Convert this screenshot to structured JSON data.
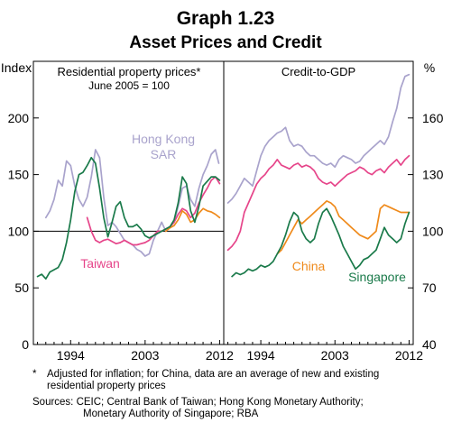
{
  "figure": {
    "title": "Graph 1.23",
    "subtitle": "Asset Prices and Credit"
  },
  "colors": {
    "hong_kong": "#a9a3cc",
    "taiwan": "#e6458a",
    "china": "#ef8a1b",
    "singapore": "#1a7a4a"
  },
  "footnotes": {
    "note_marker": "*",
    "note_line1": "Adjusted for inflation; for China, data are an average of new and existing",
    "note_line2": "residential property prices",
    "sources_line1": "Sources:  CEIC; Central Bank of Taiwan; Hong Kong Monetary Authority;",
    "sources_line2": "Monetary Authority of Singapore; RBA"
  },
  "chart_data": [
    {
      "type": "line",
      "title": "Residential property prices*",
      "subtitle": "June 2005 = 100",
      "ylabel": "Index",
      "xlim": [
        1989.5,
        2012.5
      ],
      "ylim": [
        0,
        250
      ],
      "yticks": [
        0,
        50,
        100,
        150,
        200
      ],
      "xticks": [
        1994,
        2003,
        2012
      ],
      "reference_line": 100,
      "series": [
        {
          "name": "Hong Kong SAR",
          "color_key": "hong_kong",
          "x": [
            1991.0,
            1991.5,
            1992.0,
            1992.5,
            1993.0,
            1993.5,
            1994.0,
            1994.5,
            1995.0,
            1995.5,
            1996.0,
            1996.5,
            1997.0,
            1997.5,
            1998.0,
            1998.5,
            1999.0,
            1999.5,
            2000.0,
            2000.5,
            2001.0,
            2001.5,
            2002.0,
            2002.5,
            2003.0,
            2003.5,
            2004.0,
            2004.5,
            2005.0,
            2005.5,
            2006.0,
            2006.5,
            2007.0,
            2007.5,
            2008.0,
            2008.5,
            2009.0,
            2009.5,
            2010.0,
            2010.5,
            2011.0,
            2011.5,
            2011.9
          ],
          "values": [
            112,
            118,
            128,
            145,
            140,
            162,
            158,
            140,
            128,
            122,
            130,
            148,
            172,
            165,
            130,
            105,
            108,
            104,
            98,
            92,
            90,
            88,
            84,
            82,
            78,
            80,
            92,
            100,
            108,
            100,
            104,
            108,
            122,
            138,
            140,
            128,
            122,
            138,
            150,
            158,
            168,
            172,
            160
          ]
        },
        {
          "name": "Taiwan",
          "color_key": "taiwan",
          "x": [
            1996.0,
            1996.5,
            1997.0,
            1997.5,
            1998.0,
            1998.5,
            1999.0,
            1999.5,
            2000.0,
            2000.5,
            2001.0,
            2001.5,
            2002.0,
            2002.5,
            2003.0,
            2003.5,
            2004.0,
            2004.5,
            2005.0,
            2005.5,
            2006.0,
            2006.5,
            2007.0,
            2007.5,
            2008.0,
            2008.5,
            2009.0,
            2009.5,
            2010.0,
            2010.5,
            2011.0,
            2011.5,
            2012.0
          ],
          "values": [
            112,
            100,
            92,
            90,
            92,
            93,
            91,
            89,
            90,
            92,
            90,
            88,
            88,
            89,
            90,
            92,
            96,
            100,
            100,
            102,
            104,
            108,
            115,
            120,
            118,
            112,
            116,
            125,
            132,
            138,
            145,
            148,
            142
          ]
        },
        {
          "name": "China",
          "color_key": "china",
          "x": [
            2005.5,
            2006.0,
            2006.5,
            2007.0,
            2007.5,
            2008.0,
            2008.5,
            2009.0,
            2009.5,
            2010.0,
            2010.5,
            2011.0,
            2011.5,
            2012.0
          ],
          "values": [
            100,
            103,
            105,
            110,
            118,
            115,
            108,
            110,
            116,
            120,
            118,
            117,
            115,
            112
          ]
        },
        {
          "name": "Singapore",
          "color_key": "singapore",
          "x": [
            1990.0,
            1990.5,
            1991.0,
            1991.5,
            1992.0,
            1992.5,
            1993.0,
            1993.5,
            1994.0,
            1994.5,
            1995.0,
            1995.5,
            1996.0,
            1996.5,
            1997.0,
            1997.5,
            1998.0,
            1998.5,
            1999.0,
            1999.5,
            2000.0,
            2000.5,
            2001.0,
            2001.5,
            2002.0,
            2002.5,
            2003.0,
            2003.5,
            2004.0,
            2004.5,
            2005.0,
            2005.5,
            2006.0,
            2006.5,
            2007.0,
            2007.5,
            2008.0,
            2008.5,
            2009.0,
            2009.5,
            2010.0,
            2010.5,
            2011.0,
            2011.5,
            2012.0
          ],
          "values": [
            60,
            62,
            58,
            64,
            66,
            68,
            75,
            90,
            110,
            135,
            150,
            152,
            158,
            165,
            160,
            138,
            112,
            95,
            108,
            122,
            126,
            112,
            104,
            104,
            106,
            102,
            96,
            94,
            96,
            98,
            100,
            102,
            104,
            110,
            125,
            148,
            142,
            118,
            108,
            122,
            140,
            144,
            148,
            148,
            145
          ]
        }
      ],
      "labels": [
        {
          "text_line1": "Hong Kong",
          "text_line2": "SAR",
          "series": "Hong Kong SAR"
        },
        {
          "text_line1": "Taiwan",
          "series": "Taiwan"
        }
      ]
    },
    {
      "type": "line",
      "title": "Credit-to-GDP",
      "ylabel": "%",
      "xlim": [
        1989.5,
        2012.5
      ],
      "ylim": [
        40,
        190
      ],
      "yticks": [
        40,
        70,
        100,
        130,
        160
      ],
      "xticks": [
        1994,
        2003,
        2012
      ],
      "series": [
        {
          "name": "Hong Kong SAR",
          "color_key": "hong_kong",
          "x": [
            1990.0,
            1990.5,
            1991.0,
            1991.5,
            1992.0,
            1992.5,
            1993.0,
            1993.5,
            1994.0,
            1994.5,
            1995.0,
            1995.5,
            1996.0,
            1996.5,
            1997.0,
            1997.5,
            1998.0,
            1998.5,
            1999.0,
            1999.5,
            2000.0,
            2000.5,
            2001.0,
            2001.5,
            2002.0,
            2002.5,
            2003.0,
            2003.5,
            2004.0,
            2004.5,
            2005.0,
            2005.5,
            2006.0,
            2006.5,
            2007.0,
            2007.5,
            2008.0,
            2008.5,
            2009.0,
            2009.5,
            2010.0,
            2010.5,
            2011.0,
            2011.5,
            2012.0
          ],
          "values": [
            115,
            117,
            120,
            124,
            128,
            126,
            124,
            132,
            140,
            145,
            148,
            150,
            152,
            153,
            155,
            148,
            145,
            146,
            145,
            142,
            140,
            140,
            138,
            136,
            135,
            136,
            134,
            138,
            140,
            139,
            138,
            136,
            137,
            140,
            142,
            144,
            146,
            148,
            146,
            150,
            158,
            165,
            176,
            182,
            183
          ]
        },
        {
          "name": "Taiwan",
          "color_key": "taiwan",
          "x": [
            1990.0,
            1990.5,
            1991.0,
            1991.5,
            1992.0,
            1992.5,
            1993.0,
            1993.5,
            1994.0,
            1994.5,
            1995.0,
            1995.5,
            1996.0,
            1996.5,
            1997.0,
            1997.5,
            1998.0,
            1998.5,
            1999.0,
            1999.5,
            2000.0,
            2000.5,
            2001.0,
            2001.5,
            2002.0,
            2002.5,
            2003.0,
            2003.5,
            2004.0,
            2004.5,
            2005.0,
            2005.5,
            2006.0,
            2006.5,
            2007.0,
            2007.5,
            2008.0,
            2008.5,
            2009.0,
            2009.5,
            2010.0,
            2010.5,
            2011.0,
            2011.5,
            2012.0
          ],
          "values": [
            90,
            92,
            95,
            100,
            110,
            115,
            120,
            125,
            128,
            130,
            133,
            135,
            138,
            135,
            134,
            133,
            135,
            136,
            134,
            135,
            134,
            132,
            128,
            126,
            125,
            126,
            124,
            126,
            128,
            130,
            131,
            132,
            134,
            133,
            131,
            130,
            132,
            133,
            131,
            134,
            136,
            138,
            135,
            138,
            140
          ]
        },
        {
          "name": "China",
          "color_key": "china",
          "x": [
            1996.0,
            1996.5,
            1997.0,
            1997.5,
            1998.0,
            1998.5,
            1999.0,
            1999.5,
            2000.0,
            2000.5,
            2001.0,
            2001.5,
            2002.0,
            2002.5,
            2003.0,
            2003.5,
            2004.0,
            2004.5,
            2005.0,
            2005.5,
            2006.0,
            2006.5,
            2007.0,
            2007.5,
            2008.0,
            2008.5,
            2009.0,
            2009.5,
            2010.0,
            2010.5,
            2011.0,
            2011.5,
            2012.0
          ],
          "values": [
            88,
            90,
            94,
            98,
            102,
            106,
            104,
            106,
            108,
            110,
            112,
            114,
            116,
            115,
            113,
            108,
            106,
            104,
            102,
            100,
            98,
            97,
            96,
            98,
            100,
            112,
            114,
            113,
            112,
            111,
            110,
            110,
            110
          ]
        },
        {
          "name": "Singapore",
          "color_key": "singapore",
          "x": [
            1990.5,
            1991.0,
            1991.5,
            1992.0,
            1992.5,
            1993.0,
            1993.5,
            1994.0,
            1994.5,
            1995.0,
            1995.5,
            1996.0,
            1996.5,
            1997.0,
            1997.5,
            1998.0,
            1998.5,
            1999.0,
            1999.5,
            2000.0,
            2000.5,
            2001.0,
            2001.5,
            2002.0,
            2002.5,
            2003.0,
            2003.5,
            2004.0,
            2004.5,
            2005.0,
            2005.5,
            2006.0,
            2006.5,
            2007.0,
            2007.5,
            2008.0,
            2008.5,
            2009.0,
            2009.5,
            2010.0,
            2010.5,
            2011.0,
            2011.5,
            2012.0
          ],
          "values": [
            76,
            78,
            77,
            78,
            80,
            79,
            80,
            82,
            81,
            82,
            84,
            88,
            92,
            98,
            105,
            110,
            108,
            100,
            96,
            94,
            96,
            104,
            110,
            112,
            108,
            103,
            98,
            92,
            88,
            84,
            80,
            82,
            85,
            86,
            88,
            90,
            96,
            102,
            98,
            96,
            94,
            96,
            104,
            110
          ]
        }
      ],
      "labels": [
        {
          "text_line1": "China",
          "series": "China"
        },
        {
          "text_line1": "Singapore",
          "series": "Singapore"
        }
      ]
    }
  ]
}
